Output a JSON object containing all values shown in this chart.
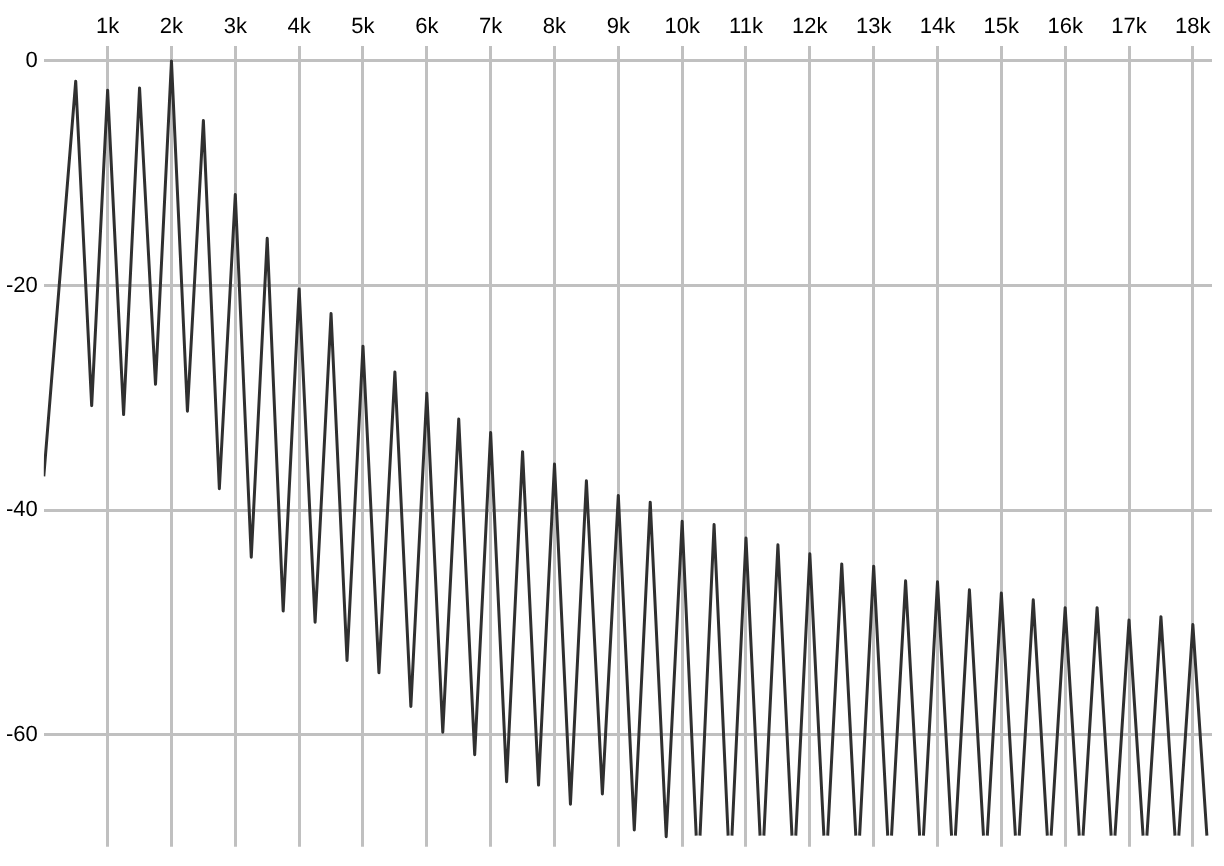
{
  "chart_data": {
    "type": "line",
    "x": [
      0,
      500,
      750,
      1000,
      1250,
      1500,
      1750,
      2000,
      2250,
      2500,
      2750,
      3000,
      3250,
      3500,
      3750,
      4000,
      4250,
      4500,
      4750,
      5000,
      5250,
      5500,
      5750,
      6000,
      6250,
      6500,
      6750,
      7000,
      7250,
      7500,
      7750,
      8000,
      8250,
      8500,
      8750,
      9000,
      9250,
      9500,
      9750,
      10000,
      10220,
      10250,
      10280,
      10500,
      10720,
      10750,
      10780,
      11000,
      11220,
      11250,
      11280,
      11500,
      11720,
      11750,
      11780,
      12000,
      12220,
      12250,
      12280,
      12500,
      12720,
      12750,
      12780,
      13000,
      13220,
      13250,
      13280,
      13500,
      13720,
      13750,
      13780,
      14000,
      14220,
      14250,
      14280,
      14500,
      14720,
      14750,
      14780,
      15000,
      15220,
      15250,
      15280,
      15500,
      15720,
      15750,
      15780,
      16000,
      16220,
      16250,
      16280,
      16500,
      16720,
      16750,
      16780,
      17000,
      17220,
      17250,
      17280,
      17500,
      17720,
      17750,
      17780,
      18000,
      18220
    ],
    "series": [
      {
        "color": "#303030",
        "values": [
          -37,
          -1.8,
          -30.7,
          -2.6,
          -31.5,
          -2.4,
          -28.8,
          0,
          -31.2,
          -5.3,
          -38.1,
          -11.9,
          -44.2,
          -15.8,
          -49,
          -20.3,
          -50,
          -22.5,
          -53.4,
          -25.4,
          -54.5,
          -27.7,
          -57.5,
          -29.6,
          -59.8,
          -31.9,
          -61.8,
          -33.1,
          -64.2,
          -34.8,
          -64.5,
          -35.9,
          -66.2,
          -37.4,
          -65.3,
          -38.7,
          -68.5,
          -39.3,
          -69.1,
          -41,
          -69,
          null,
          -69,
          -41.3,
          -69,
          null,
          -69,
          -42.5,
          -69,
          null,
          -69,
          -43.1,
          -69,
          null,
          -69,
          -43.9,
          -69,
          null,
          -69,
          -44.8,
          -69,
          null,
          -69,
          -45,
          -69,
          null,
          -69,
          -46.3,
          -69,
          null,
          -69,
          -46.4,
          -69,
          null,
          -69,
          -47.1,
          -69,
          null,
          -69,
          -47.4,
          -69,
          null,
          -69,
          -48,
          -69,
          null,
          -69,
          -48.7,
          -69,
          null,
          -69,
          -48.7,
          -69,
          null,
          -69,
          -49.8,
          -69,
          null,
          -69,
          -49.5,
          -69,
          null,
          -69,
          -50.2,
          -69
        ]
      }
    ],
    "xlim": [
      0,
      18300
    ],
    "ylim": [
      -70,
      1.3
    ],
    "xticks": [
      {
        "value": 1000,
        "label": "1k"
      },
      {
        "value": 2000,
        "label": "2k"
      },
      {
        "value": 3000,
        "label": "3k"
      },
      {
        "value": 4000,
        "label": "4k"
      },
      {
        "value": 5000,
        "label": "5k"
      },
      {
        "value": 6000,
        "label": "6k"
      },
      {
        "value": 7000,
        "label": "7k"
      },
      {
        "value": 8000,
        "label": "8k"
      },
      {
        "value": 9000,
        "label": "9k"
      },
      {
        "value": 10000,
        "label": "10k"
      },
      {
        "value": 11000,
        "label": "11k"
      },
      {
        "value": 12000,
        "label": "12k"
      },
      {
        "value": 13000,
        "label": "13k"
      },
      {
        "value": 14000,
        "label": "14k"
      },
      {
        "value": 15000,
        "label": "15k"
      },
      {
        "value": 16000,
        "label": "16k"
      },
      {
        "value": 17000,
        "label": "17k"
      },
      {
        "value": 18000,
        "label": "18k"
      }
    ],
    "yticks": [
      0,
      -20,
      -40,
      -60
    ],
    "grid": true,
    "legend": false,
    "marker": "none",
    "line_style": "solid"
  }
}
